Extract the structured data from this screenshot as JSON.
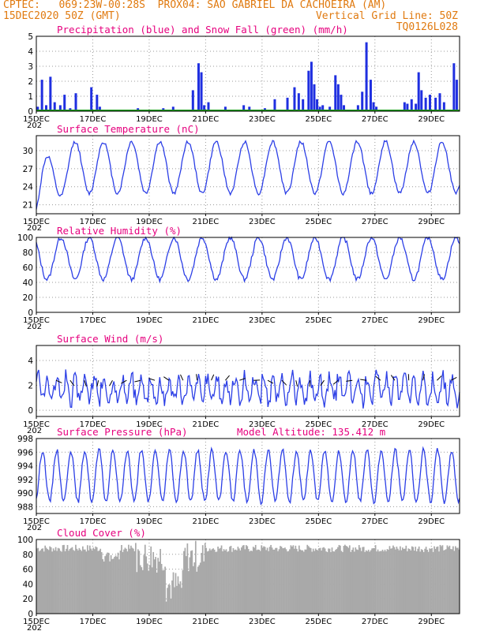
{
  "header": {
    "line1_left": "CPTEC:   069:23W-00:28S  PROX04: SAO GABRIEL DA CACHOEIRA (AM)",
    "line2_left": "15DEC2020 50Z (GMT)",
    "line2_right": "Vertical Grid Line: 50Z",
    "line3_right": "TQ0126L028"
  },
  "colors": {
    "header": "#e07a10",
    "title": "#e6007e",
    "line": "#2c3fe6",
    "precip": "#1f2fe0",
    "snow": "#1a9a1a",
    "cloud": "#a9a9a9"
  },
  "x_axis": {
    "labels": [
      "15DEC",
      "17DEC",
      "19DEC",
      "21DEC",
      "23DEC",
      "25DEC",
      "27DEC",
      "29DEC"
    ],
    "start_day": 15,
    "end_day": 30,
    "cut_text": "202"
  },
  "chart_data": [
    {
      "type": "bar",
      "title": "Precipitation (blue) and Snow Fall (green) (mm/h)",
      "ylim": [
        0,
        5
      ],
      "yticks": [
        0,
        1,
        2,
        3,
        4,
        5
      ],
      "series": [
        {
          "name": "Precipitation",
          "x_days": [
            15.05,
            15.2,
            15.35,
            15.5,
            15.65,
            15.85,
            16.0,
            16.2,
            16.4,
            16.95,
            17.15,
            17.25,
            18.6,
            19.5,
            19.85,
            20.55,
            20.75,
            20.85,
            20.95,
            21.1,
            21.7,
            22.35,
            22.55,
            23.1,
            23.45,
            23.9,
            24.15,
            24.3,
            24.45,
            24.65,
            24.75,
            24.85,
            24.95,
            25.05,
            25.15,
            25.4,
            25.6,
            25.7,
            25.8,
            25.9,
            26.4,
            26.55,
            26.7,
            26.85,
            26.95,
            27.05,
            28.05,
            28.15,
            28.3,
            28.45,
            28.55,
            28.65,
            28.8,
            28.95,
            29.15,
            29.3,
            29.45,
            29.8,
            29.9
          ],
          "values": [
            0.3,
            2.1,
            0.4,
            2.3,
            0.6,
            0.4,
            1.1,
            0.2,
            1.2,
            1.6,
            1.1,
            0.3,
            0.2,
            0.2,
            0.3,
            1.4,
            3.2,
            2.6,
            0.4,
            0.6,
            0.3,
            0.4,
            0.3,
            0.2,
            0.8,
            0.9,
            1.6,
            1.2,
            0.8,
            2.7,
            3.3,
            1.8,
            0.8,
            0.3,
            0.4,
            0.3,
            2.4,
            1.8,
            1.1,
            0.4,
            0.4,
            1.3,
            4.6,
            2.1,
            0.6,
            0.3,
            0.6,
            0.5,
            0.8,
            0.5,
            2.6,
            1.4,
            0.9,
            1.1,
            0.9,
            1.2,
            0.6,
            3.2,
            2.1
          ]
        },
        {
          "name": "Snow Fall",
          "values": [
            0
          ]
        }
      ]
    },
    {
      "type": "line",
      "title": "Surface Temperature (nC)",
      "ylim": [
        19.5,
        32.5
      ],
      "yticks": [
        21,
        24,
        27,
        30
      ],
      "series": [
        {
          "name": "Temperature",
          "amplitude": 4.3,
          "mean": 27.2,
          "start": 22.6
        }
      ]
    },
    {
      "type": "line",
      "title": "Relative Humidity (%)",
      "ylim": [
        0,
        100
      ],
      "yticks": [
        0,
        20,
        40,
        60,
        80,
        100
      ],
      "series": [
        {
          "name": "Relative Humidity",
          "min": 42,
          "max": 100
        }
      ]
    },
    {
      "type": "line",
      "title": "Surface Wind (m/s)",
      "ylim": [
        -0.5,
        5.2
      ],
      "yticks": [
        0,
        2,
        4
      ],
      "series": [
        {
          "name": "Wind speed",
          "mean": 1.7,
          "spread": 1.0
        }
      ],
      "vectors_y": 2.4
    },
    {
      "type": "line",
      "title": "Surface Pressure (hPa)",
      "subtitle": "Model Altitude: 135.412 m",
      "ylim": [
        987,
        998
      ],
      "yticks": [
        988,
        990,
        992,
        994,
        996,
        998
      ],
      "series": [
        {
          "name": "Pressure",
          "mean": 992.5,
          "amplitude": 3.8
        }
      ]
    },
    {
      "type": "bar",
      "title": "Cloud Cover (%)",
      "ylim": [
        0,
        100
      ],
      "yticks": [
        0,
        20,
        40,
        60,
        80,
        100
      ],
      "series": [
        {
          "name": "Cloud Cover",
          "base": 86
        }
      ]
    }
  ]
}
